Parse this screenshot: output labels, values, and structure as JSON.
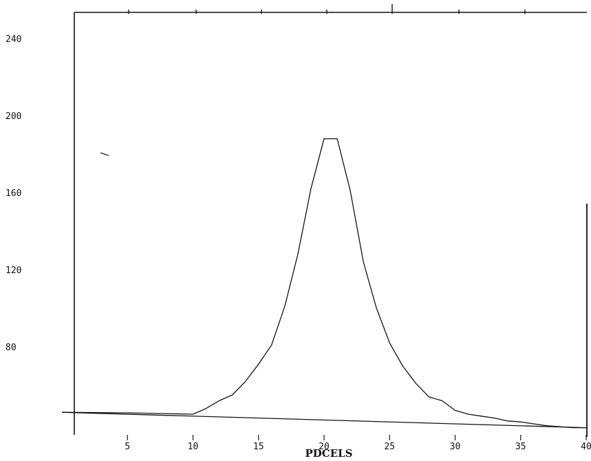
{
  "chart_data": {
    "type": "line",
    "title": "",
    "xlabel": "PDCELS",
    "ylabel": "",
    "xlim": [
      0,
      40
    ],
    "ylim": [
      40,
      260
    ],
    "x_ticks": [
      5,
      10,
      15,
      20,
      25,
      30,
      35,
      40
    ],
    "x_tick_labels": [
      "5",
      "10",
      "15",
      "20",
      "25",
      "30",
      "35",
      "40"
    ],
    "y_ticks": [
      240,
      200,
      160,
      120,
      80
    ],
    "y_tick_labels": [
      "240",
      "200",
      "160",
      "120",
      "80"
    ],
    "grid": false,
    "legend": "none",
    "line_color": "#111111",
    "series": [
      {
        "x": [
          0,
          5,
          10,
          11,
          12,
          13,
          14,
          15,
          16,
          17,
          18,
          19,
          20,
          20.5,
          21,
          22,
          23,
          24,
          25,
          26,
          27,
          28,
          29,
          30,
          31,
          32,
          33,
          34,
          35,
          36,
          37,
          38,
          39,
          40
        ],
        "values": [
          46,
          45.7,
          45,
          48,
          52,
          55,
          62,
          71,
          81,
          101,
          128,
          162,
          188,
          188,
          188,
          161,
          124,
          100,
          82,
          70,
          61,
          54,
          52,
          47,
          45,
          44,
          43,
          41.5,
          41,
          40,
          39,
          38.5,
          38,
          38
        ]
      },
      {
        "x": [
          0,
          40
        ],
        "values": [
          46,
          38
        ]
      }
    ]
  }
}
